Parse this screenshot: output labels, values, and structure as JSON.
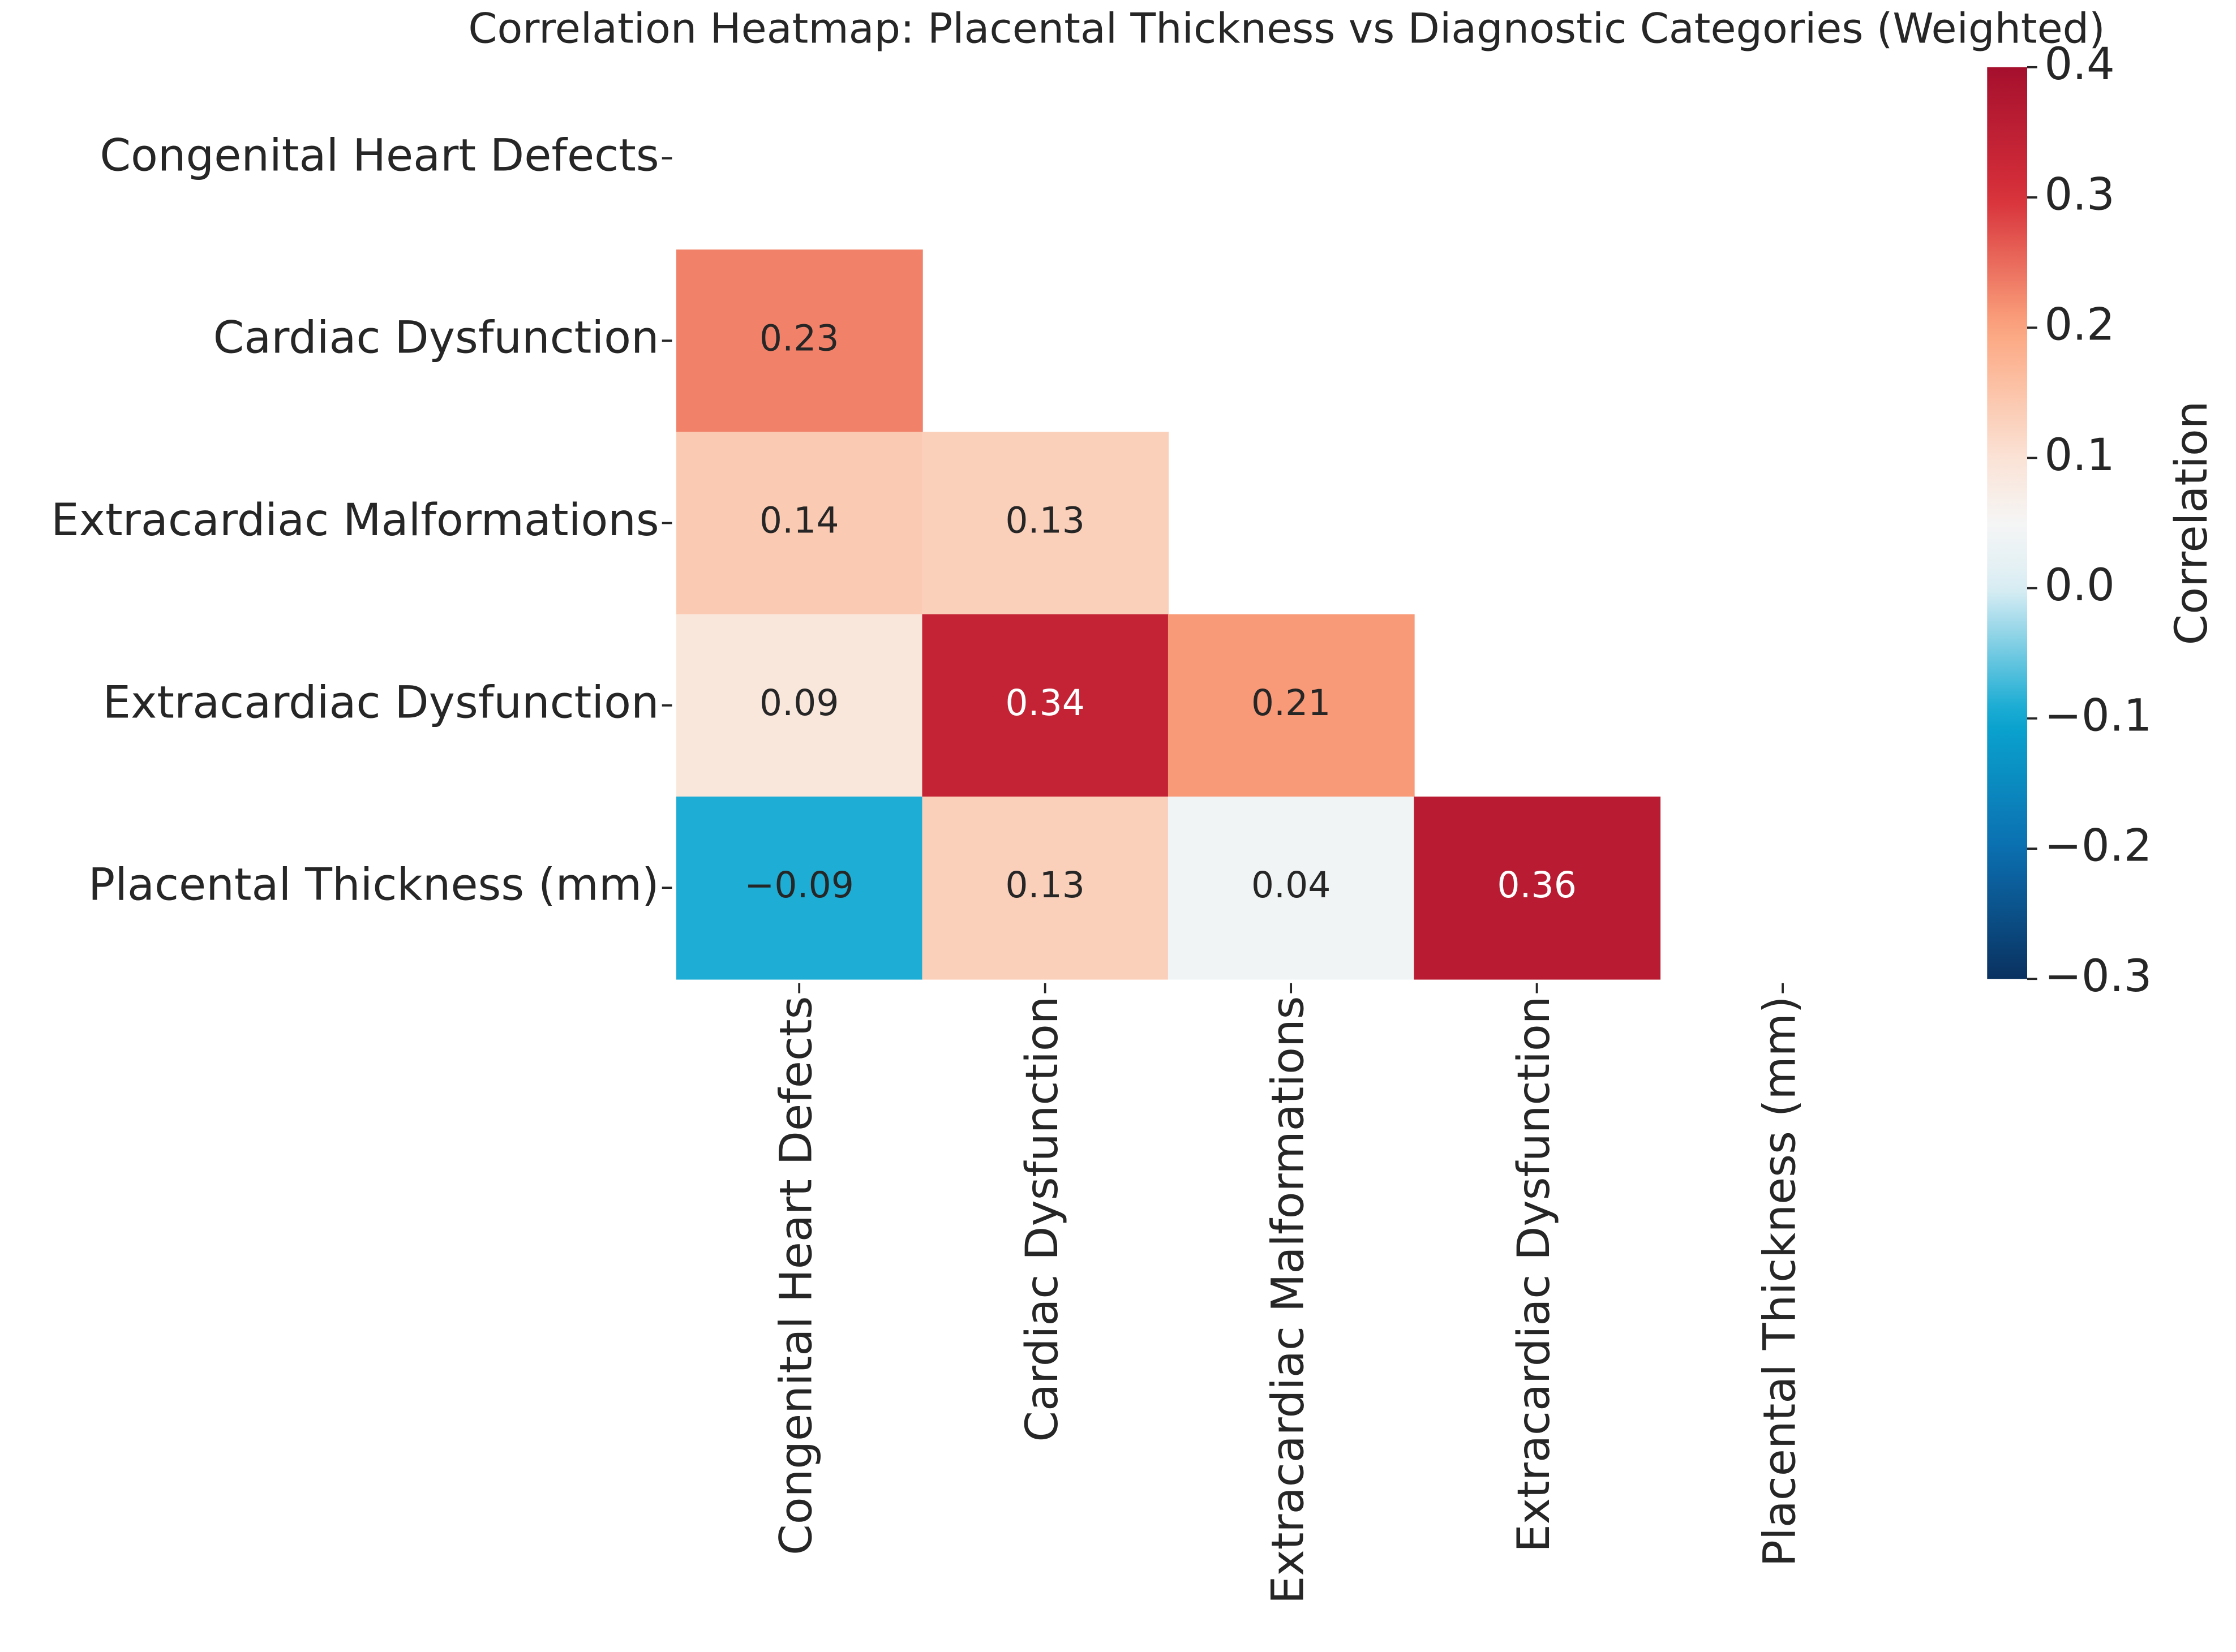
{
  "chart_data": {
    "type": "heatmap",
    "title": "Correlation Heatmap: Placental Thickness vs Diagnostic Categories (Weighted)",
    "categories": [
      "Congenital Heart Defects",
      "Cardiac Dysfunction",
      "Extracardiac Malformations",
      "Extracardiac Dysfunction",
      "Placental Thickness (mm)"
    ],
    "y_categories": [
      "Congenital Heart Defects",
      "Cardiac Dysfunction",
      "Extracardiac Malformations",
      "Extracardiac Dysfunction",
      "Placental Thickness (mm)"
    ],
    "values": [
      [
        null,
        null,
        null,
        null,
        null
      ],
      [
        0.23,
        null,
        null,
        null,
        null
      ],
      [
        0.14,
        0.13,
        null,
        null,
        null
      ],
      [
        0.09,
        0.34,
        0.21,
        null,
        null
      ],
      [
        -0.09,
        0.13,
        0.04,
        0.36,
        null
      ]
    ],
    "value_labels": [
      [
        null,
        null,
        null,
        null,
        null
      ],
      [
        "0.23",
        null,
        null,
        null,
        null
      ],
      [
        "0.14",
        "0.13",
        null,
        null,
        null
      ],
      [
        "0.09",
        "0.34",
        "0.21",
        null,
        null
      ],
      [
        "−0.09",
        "0.13",
        "0.04",
        "0.36",
        null
      ]
    ],
    "colormap": "RdBu_r",
    "clim": [
      -0.3,
      0.4
    ],
    "cticks": [
      {
        "value": -0.3,
        "label": "−0.3"
      },
      {
        "value": -0.2,
        "label": "−0.2"
      },
      {
        "value": -0.1,
        "label": "−0.1"
      },
      {
        "value": 0,
        "label": "0.0"
      },
      0.1,
      0.2,
      0.3,
      0.4
    ],
    "colorbar_label": "Correlation"
  }
}
